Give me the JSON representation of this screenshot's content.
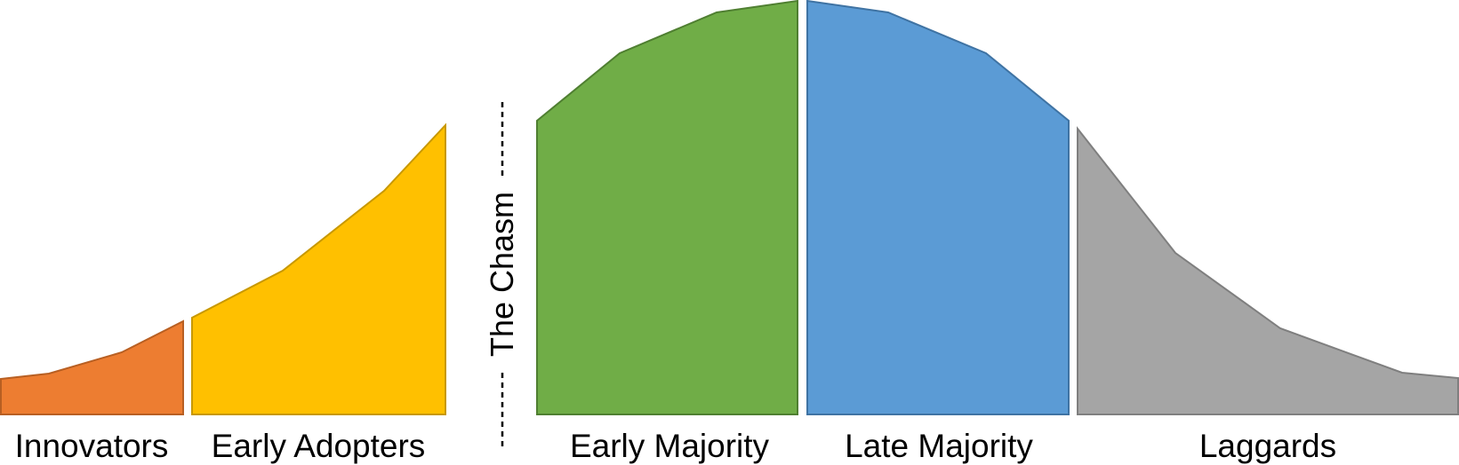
{
  "diagram": {
    "segments": [
      {
        "id": "innovators",
        "label": "Innovators",
        "fill": "#ED7D31",
        "stroke": "#B85F22"
      },
      {
        "id": "early-adopters",
        "label": "Early Adopters",
        "fill": "#FFC000",
        "stroke": "#C89800"
      },
      {
        "id": "early-majority",
        "label": "Early Majority",
        "fill": "#70AD47",
        "stroke": "#4F7F31"
      },
      {
        "id": "late-majority",
        "label": "Late Majority",
        "fill": "#5B9BD5",
        "stroke": "#3F73A3"
      },
      {
        "id": "laggards",
        "label": "Laggards",
        "fill": "#A5A5A5",
        "stroke": "#7F7F7F"
      }
    ],
    "chasm": {
      "label": "The Chasm",
      "line_color": "#000000"
    }
  }
}
